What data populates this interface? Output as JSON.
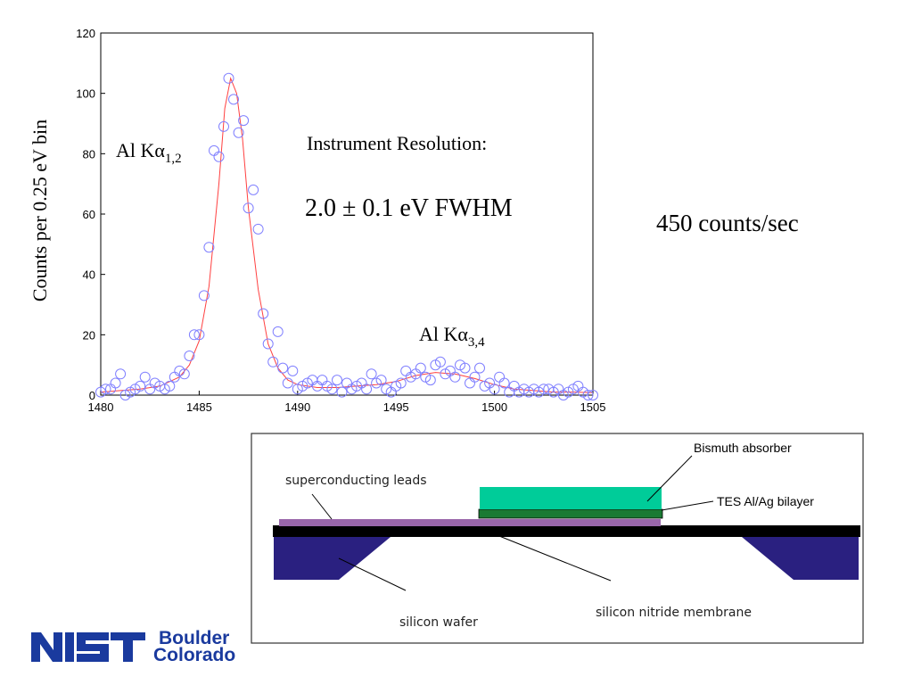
{
  "chart_data": {
    "type": "scatter",
    "xlim": [
      1480,
      1505
    ],
    "ylim": [
      0,
      120
    ],
    "x_ticks": [
      1480,
      1485,
      1490,
      1495,
      1500,
      1505
    ],
    "y_ticks": [
      0,
      20,
      40,
      60,
      80,
      100,
      120
    ],
    "ylabel": "Counts per 0.25 eV bin",
    "xlabel": "",
    "title": "",
    "grid": false,
    "series": [
      {
        "marker": "open-circle",
        "color": "#8080ff",
        "points": [
          [
            1480.0,
            1
          ],
          [
            1480.25,
            2
          ],
          [
            1480.5,
            2
          ],
          [
            1480.75,
            4
          ],
          [
            1481.0,
            7
          ],
          [
            1481.25,
            0
          ],
          [
            1481.5,
            1
          ],
          [
            1481.75,
            2
          ],
          [
            1482.0,
            3
          ],
          [
            1482.25,
            6
          ],
          [
            1482.5,
            2
          ],
          [
            1482.75,
            4
          ],
          [
            1483.0,
            3
          ],
          [
            1483.25,
            2
          ],
          [
            1483.5,
            3
          ],
          [
            1483.75,
            6
          ],
          [
            1484.0,
            8
          ],
          [
            1484.25,
            7
          ],
          [
            1484.5,
            13
          ],
          [
            1484.75,
            20
          ],
          [
            1485.0,
            20
          ],
          [
            1485.25,
            33
          ],
          [
            1485.5,
            49
          ],
          [
            1485.75,
            81
          ],
          [
            1486.0,
            79
          ],
          [
            1486.25,
            89
          ],
          [
            1486.5,
            105
          ],
          [
            1486.75,
            98
          ],
          [
            1487.0,
            87
          ],
          [
            1487.25,
            91
          ],
          [
            1487.5,
            62
          ],
          [
            1487.75,
            68
          ],
          [
            1488.0,
            55
          ],
          [
            1488.25,
            27
          ],
          [
            1488.5,
            17
          ],
          [
            1488.75,
            11
          ],
          [
            1489.0,
            21
          ],
          [
            1489.25,
            9
          ],
          [
            1489.5,
            4
          ],
          [
            1489.75,
            8
          ],
          [
            1490.0,
            2
          ],
          [
            1490.25,
            3
          ],
          [
            1490.5,
            4
          ],
          [
            1490.75,
            5
          ],
          [
            1491.0,
            3
          ],
          [
            1491.25,
            5
          ],
          [
            1491.5,
            3
          ],
          [
            1491.75,
            2
          ],
          [
            1492.0,
            5
          ],
          [
            1492.25,
            1
          ],
          [
            1492.5,
            4
          ],
          [
            1492.75,
            2
          ],
          [
            1493.0,
            3
          ],
          [
            1493.25,
            4
          ],
          [
            1493.5,
            2
          ],
          [
            1493.75,
            7
          ],
          [
            1494.0,
            4
          ],
          [
            1494.25,
            5
          ],
          [
            1494.5,
            2
          ],
          [
            1494.75,
            1
          ],
          [
            1495.0,
            3
          ],
          [
            1495.25,
            4
          ],
          [
            1495.5,
            8
          ],
          [
            1495.75,
            6
          ],
          [
            1496.0,
            7
          ],
          [
            1496.25,
            9
          ],
          [
            1496.5,
            6
          ],
          [
            1496.75,
            5
          ],
          [
            1497.0,
            10
          ],
          [
            1497.25,
            11
          ],
          [
            1497.5,
            7
          ],
          [
            1497.75,
            8
          ],
          [
            1498.0,
            6
          ],
          [
            1498.25,
            10
          ],
          [
            1498.5,
            9
          ],
          [
            1498.75,
            4
          ],
          [
            1499.0,
            6
          ],
          [
            1499.25,
            9
          ],
          [
            1499.5,
            3
          ],
          [
            1499.75,
            4
          ],
          [
            1500.0,
            2
          ],
          [
            1500.25,
            6
          ],
          [
            1500.5,
            4
          ],
          [
            1500.75,
            1
          ],
          [
            1501.0,
            3
          ],
          [
            1501.25,
            1
          ],
          [
            1501.5,
            2
          ],
          [
            1501.75,
            1
          ],
          [
            1502.0,
            2
          ],
          [
            1502.25,
            1
          ],
          [
            1502.5,
            2
          ],
          [
            1502.75,
            2
          ],
          [
            1503.0,
            1
          ],
          [
            1503.25,
            2
          ],
          [
            1503.5,
            0
          ],
          [
            1503.75,
            1
          ],
          [
            1504.0,
            2
          ],
          [
            1504.25,
            3
          ],
          [
            1504.5,
            1
          ],
          [
            1504.75,
            0
          ],
          [
            1505.0,
            0
          ]
        ]
      },
      {
        "type": "line",
        "color": "#ff4040",
        "points": [
          [
            1480,
            1
          ],
          [
            1481,
            1.5
          ],
          [
            1482,
            2
          ],
          [
            1483,
            3
          ],
          [
            1484,
            6
          ],
          [
            1484.5,
            10
          ],
          [
            1485,
            18
          ],
          [
            1485.5,
            36
          ],
          [
            1486,
            70
          ],
          [
            1486.3,
            95
          ],
          [
            1486.6,
            105
          ],
          [
            1486.9,
            100
          ],
          [
            1487.2,
            85
          ],
          [
            1487.5,
            62
          ],
          [
            1488,
            35
          ],
          [
            1488.5,
            17
          ],
          [
            1489,
            9
          ],
          [
            1489.5,
            5
          ],
          [
            1490,
            3.5
          ],
          [
            1491,
            2.5
          ],
          [
            1492,
            2.5
          ],
          [
            1493,
            3
          ],
          [
            1494,
            3.5
          ],
          [
            1495,
            4.5
          ],
          [
            1496,
            6.5
          ],
          [
            1497,
            7.5
          ],
          [
            1498,
            7
          ],
          [
            1499,
            5.5
          ],
          [
            1500,
            3.5
          ],
          [
            1501,
            2
          ],
          [
            1502,
            1.5
          ],
          [
            1503,
            1
          ],
          [
            1504,
            1
          ],
          [
            1505,
            0.8
          ]
        ]
      }
    ],
    "annotations": {
      "peak1_main": "Al K",
      "peak1_greek": "α",
      "peak1_sub": "1,2",
      "peak2_main": "Al K",
      "peak2_greek": "α",
      "peak2_sub": "3,4",
      "resolution_title": "Instrument Resolution:",
      "resolution_value": "2.0 ± 0.1 eV FWHM"
    }
  },
  "side_note": "450 counts/sec",
  "diagram": {
    "labels": {
      "absorber": "Bismuth absorber",
      "tes": "TES Al/Ag bilayer",
      "leads": "superconducting leads",
      "wafer": "silicon wafer",
      "membrane": "silicon nitride membrane"
    },
    "colors": {
      "absorber": "#00cc99",
      "tes": "#1a7a33",
      "leads": "#9966aa",
      "membrane": "#000000",
      "wafer": "#2a2080"
    }
  },
  "logo": {
    "mark": "NIST",
    "line1": "Boulder",
    "line2": "Colorado",
    "color": "#1a3a9e"
  }
}
